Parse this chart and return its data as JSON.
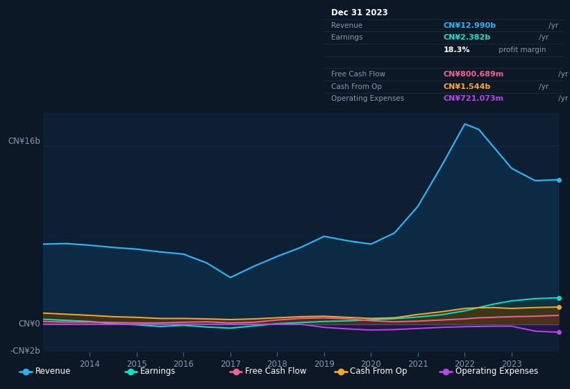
{
  "bg_color": "#0d1826",
  "plot_bg": "#0e1f33",
  "years": [
    2013.0,
    2013.5,
    2014.0,
    2014.5,
    2015.0,
    2015.5,
    2016.0,
    2016.5,
    2017.0,
    2017.5,
    2018.0,
    2018.5,
    2019.0,
    2019.5,
    2020.0,
    2020.5,
    2021.0,
    2021.5,
    2022.0,
    2022.3,
    2022.6,
    2023.0,
    2023.5,
    2024.0
  ],
  "revenue": [
    7.2,
    7.25,
    7.1,
    6.9,
    6.75,
    6.5,
    6.3,
    5.5,
    4.2,
    5.2,
    6.1,
    6.9,
    7.9,
    7.5,
    7.2,
    8.2,
    10.6,
    14.2,
    18.0,
    17.5,
    16.0,
    14.0,
    12.9,
    12.99
  ],
  "earnings": [
    0.45,
    0.35,
    0.25,
    0.05,
    -0.05,
    -0.2,
    -0.1,
    -0.25,
    -0.35,
    -0.15,
    0.05,
    0.15,
    0.25,
    0.3,
    0.4,
    0.5,
    0.65,
    0.85,
    1.2,
    1.5,
    1.8,
    2.1,
    2.3,
    2.382
  ],
  "free_cash_flow": [
    0.25,
    0.2,
    0.2,
    0.15,
    0.12,
    0.12,
    0.18,
    0.22,
    0.12,
    0.18,
    0.38,
    0.52,
    0.58,
    0.48,
    0.32,
    0.22,
    0.28,
    0.38,
    0.48,
    0.58,
    0.62,
    0.68,
    0.72,
    0.8
  ],
  "cash_from_op": [
    1.0,
    0.9,
    0.8,
    0.68,
    0.62,
    0.52,
    0.52,
    0.48,
    0.42,
    0.48,
    0.58,
    0.68,
    0.72,
    0.62,
    0.52,
    0.58,
    0.88,
    1.12,
    1.42,
    1.48,
    1.5,
    1.42,
    1.5,
    1.544
  ],
  "op_expenses": [
    0.0,
    0.0,
    0.0,
    0.0,
    0.0,
    0.0,
    0.0,
    0.0,
    0.0,
    0.0,
    0.0,
    0.0,
    -0.28,
    -0.42,
    -0.52,
    -0.48,
    -0.38,
    -0.28,
    -0.22,
    -0.2,
    -0.18,
    -0.18,
    -0.62,
    -0.721
  ],
  "revenue_color": "#29b5f5",
  "earnings_color": "#00e5cc",
  "free_cash_flow_color": "#f06292",
  "cash_from_op_color": "#ffa726",
  "op_expenses_color": "#bb44ee",
  "ylim_min": -2.5,
  "ylim_max": 19.0,
  "y_zero": 0,
  "y_16": 16,
  "y_neg2": -2,
  "xticks": [
    2014,
    2015,
    2016,
    2017,
    2018,
    2019,
    2020,
    2021,
    2022,
    2023
  ],
  "info_box": {
    "date": "Dec 31 2023",
    "rows": [
      {
        "label": "Revenue",
        "value": "CN¥12.990b",
        "unit": " /yr",
        "color": "#29b5f5"
      },
      {
        "label": "Earnings",
        "value": "CN¥2.382b",
        "unit": " /yr",
        "color": "#00e5cc"
      },
      {
        "label": "",
        "value": "18.3%",
        "unit": " profit margin",
        "color": "#ffffff"
      },
      {
        "label": "Free Cash Flow",
        "value": "CN¥800.689m",
        "unit": " /yr",
        "color": "#f06292"
      },
      {
        "label": "Cash From Op",
        "value": "CN¥1.544b",
        "unit": " /yr",
        "color": "#ffa726"
      },
      {
        "label": "Operating Expenses",
        "value": "CN¥721.073m",
        "unit": " /yr",
        "color": "#bb44ee"
      }
    ]
  },
  "legend_items": [
    {
      "label": "Revenue",
      "color": "#29b5f5"
    },
    {
      "label": "Earnings",
      "color": "#00e5cc"
    },
    {
      "label": "Free Cash Flow",
      "color": "#f06292"
    },
    {
      "label": "Cash From Op",
      "color": "#ffa726"
    },
    {
      "label": "Operating Expenses",
      "color": "#bb44ee"
    }
  ],
  "label_color": "#8899aa",
  "text_color": "#ccddee"
}
